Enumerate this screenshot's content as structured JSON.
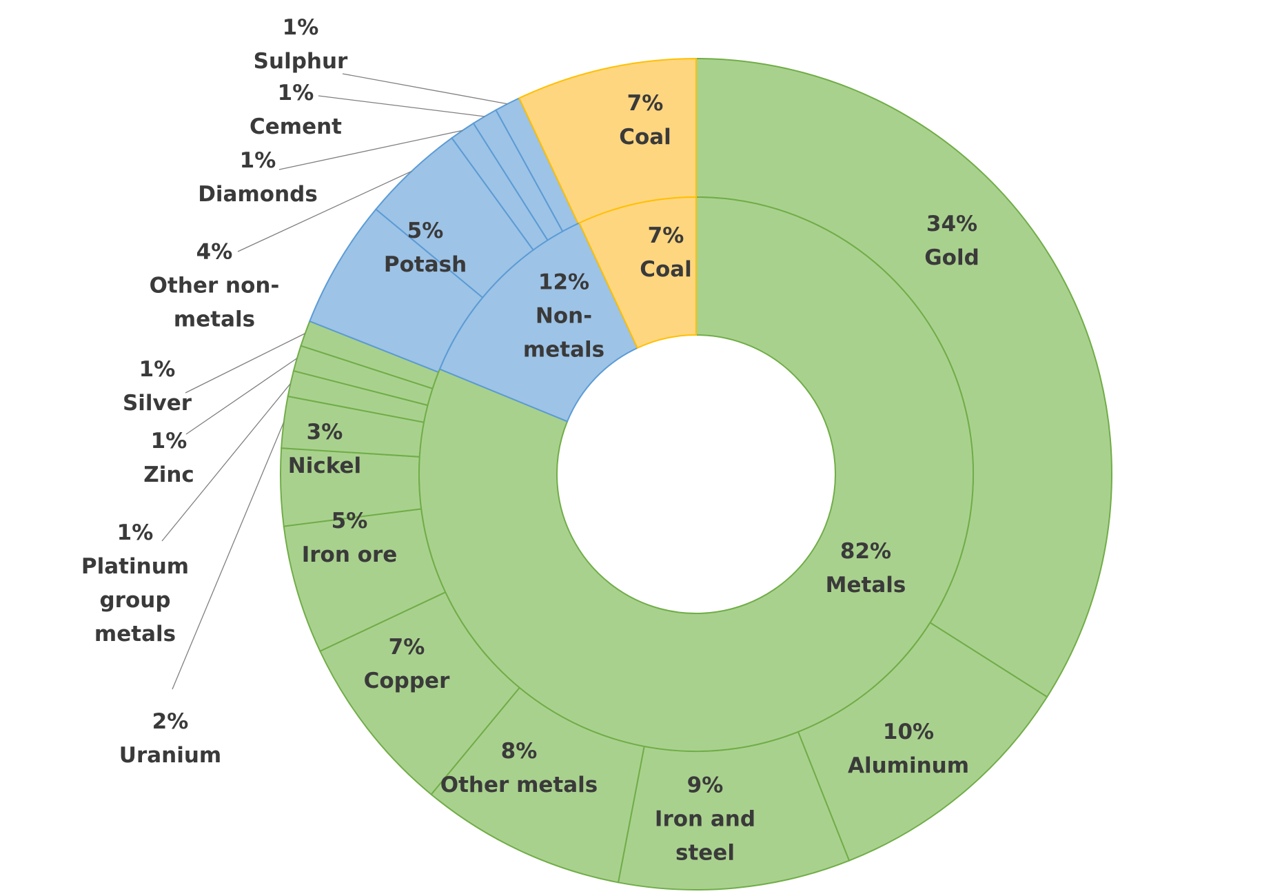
{
  "chart_data": {
    "type": "sunburst",
    "colors": {
      "metals_fill": "#a9d18e",
      "metals_stroke": "#70ad47",
      "nonmetals_fill": "#9dc3e6",
      "nonmetals_stroke": "#5b9bd5",
      "coal_fill": "#ffd680",
      "coal_stroke": "#ffc000"
    },
    "inner": [
      {
        "name": "Metals",
        "value": 82,
        "label": "82%",
        "text": "Metals",
        "group": "metals"
      },
      {
        "name": "Non-metals",
        "value": 12,
        "label": "12%",
        "text": "Non-\nmetals",
        "group": "nonmetals"
      },
      {
        "name": "Coal",
        "value": 7,
        "label": "7%",
        "text": "Coal",
        "group": "coal"
      }
    ],
    "outer": [
      {
        "name": "Gold",
        "value": 34,
        "label": "34%",
        "text": "Gold",
        "group": "metals"
      },
      {
        "name": "Aluminum",
        "value": 10,
        "label": "10%",
        "text": "Aluminum",
        "group": "metals"
      },
      {
        "name": "Iron and steel",
        "value": 9,
        "label": "9%",
        "text": "Iron and\nsteel",
        "group": "metals"
      },
      {
        "name": "Other metals",
        "value": 8,
        "label": "8%",
        "text": "Other metals",
        "group": "metals"
      },
      {
        "name": "Copper",
        "value": 7,
        "label": "7%",
        "text": "Copper",
        "group": "metals"
      },
      {
        "name": "Iron ore",
        "value": 5,
        "label": "5%",
        "text": "Iron ore",
        "group": "metals"
      },
      {
        "name": "Nickel",
        "value": 3,
        "label": "3%",
        "text": "Nickel",
        "group": "metals"
      },
      {
        "name": "Uranium",
        "value": 2,
        "label": "2%",
        "text": "Uranium",
        "group": "metals",
        "external": true
      },
      {
        "name": "Platinum group metals",
        "value": 1,
        "label": "1%",
        "text": "Platinum\ngroup\nmetals",
        "group": "metals",
        "external": true
      },
      {
        "name": "Zinc",
        "value": 1,
        "label": "1%",
        "text": "Zinc",
        "group": "metals",
        "external": true
      },
      {
        "name": "Silver",
        "value": 1,
        "label": "1%",
        "text": "Silver",
        "group": "metals",
        "external": true
      },
      {
        "name": "Potash",
        "value": 5,
        "label": "5%",
        "text": "Potash",
        "group": "nonmetals"
      },
      {
        "name": "Other non-metals",
        "value": 4,
        "label": "4%",
        "text": "Other non-\nmetals",
        "group": "nonmetals",
        "external": true
      },
      {
        "name": "Diamonds",
        "value": 1,
        "label": "1%",
        "text": "Diamonds",
        "group": "nonmetals",
        "external": true
      },
      {
        "name": "Cement",
        "value": 1,
        "label": "1%",
        "text": "Cement",
        "group": "nonmetals",
        "external": true
      },
      {
        "name": "Sulphur",
        "value": 1,
        "label": "1%",
        "text": "Sulphur",
        "group": "nonmetals",
        "external": true
      },
      {
        "name": "Coal",
        "value": 7,
        "label": "7%",
        "text": "Coal",
        "group": "coal"
      }
    ]
  }
}
